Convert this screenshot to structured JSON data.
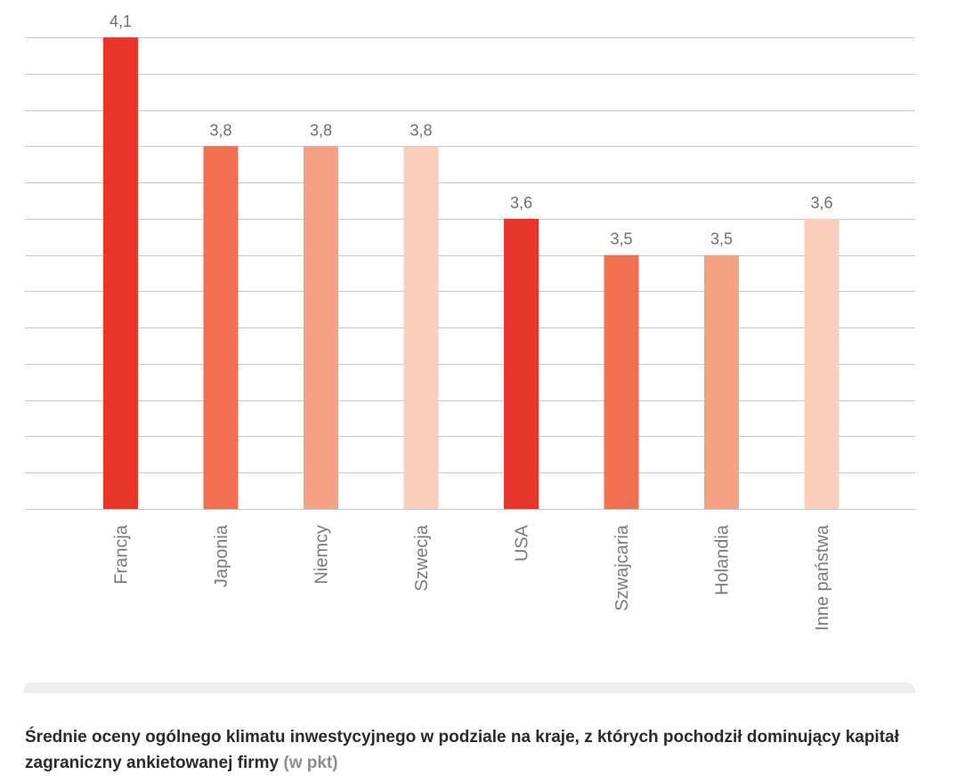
{
  "chart_data": {
    "type": "bar",
    "categories": [
      "Francja",
      "Japonia",
      "Niemcy",
      "Szwecja",
      "USA",
      "Szwajcaria",
      "Holandia",
      "Inne państwa"
    ],
    "values": [
      4.1,
      3.8,
      3.8,
      3.8,
      3.6,
      3.5,
      3.5,
      3.6
    ],
    "value_labels": [
      "4,1",
      "3,8",
      "3,8",
      "3,8",
      "3,6",
      "3,5",
      "3,5",
      "3,6"
    ],
    "bar_colors": [
      "#e8372a",
      "#f0704f",
      "#f4a283",
      "#f9cfbb",
      "#e8372a",
      "#f0704f",
      "#f4a283",
      "#f9cfbb"
    ],
    "ylim": [
      2.8,
      4.1
    ],
    "grid_step": 0.1,
    "grid": true,
    "xlabel": "",
    "ylabel": ""
  },
  "caption": {
    "text": "Średnie oceny ogólnego klimatu inwestycyjnego w podziale na kraje, z których pochodził dominujący kapitał zagraniczny ankietowanej firmy",
    "unit": "(w pkt)"
  },
  "colors": {
    "grid": "#c8c8c8",
    "caption_text": "#2b2b2b",
    "caption_unit": "#8c8c8c",
    "caption_bar": "#eeeeee"
  }
}
